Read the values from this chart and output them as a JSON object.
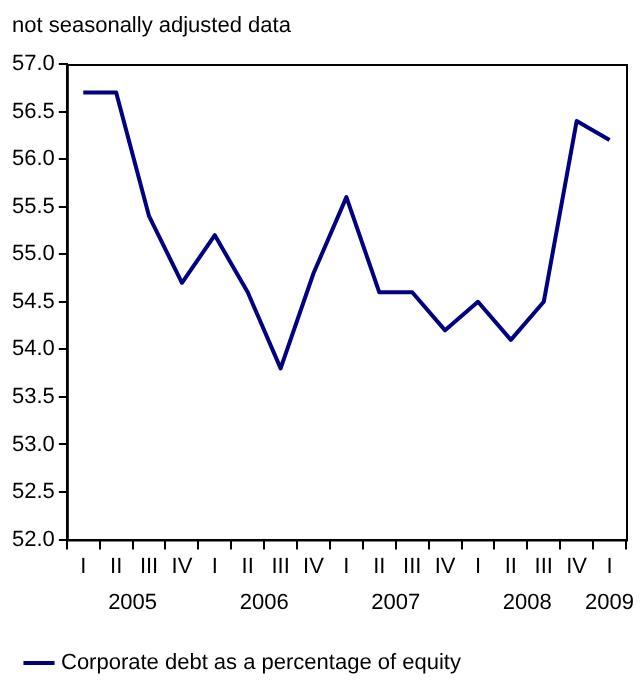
{
  "chart_data": {
    "type": "line",
    "ylabel": "not seasonally adjusted data",
    "categories": [
      "I",
      "II",
      "III",
      "IV",
      "I",
      "II",
      "III",
      "IV",
      "I",
      "II",
      "III",
      "IV",
      "I",
      "II",
      "III",
      "IV",
      "I"
    ],
    "series": [
      {
        "name": "Corporate debt as a percentage of equity",
        "color": "#000080",
        "values": [
          56.7,
          56.7,
          55.4,
          54.7,
          55.2,
          54.6,
          53.8,
          54.8,
          55.6,
          54.6,
          54.6,
          54.2,
          54.5,
          54.1,
          54.5,
          56.4,
          56.2
        ]
      }
    ],
    "annotations": [
      "2005",
      "2006",
      "2007",
      "2008",
      "2009"
    ],
    "ylim": [
      52,
      57
    ],
    "yticks": [
      {
        "value": 52,
        "label": "52.0"
      },
      {
        "value": 52.5,
        "label": "52.5"
      },
      {
        "value": 53,
        "label": "53.0"
      },
      {
        "value": 53.5,
        "label": "53.5"
      },
      {
        "value": 54,
        "label": "54.0"
      },
      {
        "value": 54.5,
        "label": "54.5"
      },
      {
        "value": 55,
        "label": "55.0"
      },
      {
        "value": 55.5,
        "label": "55.5"
      },
      {
        "value": 56,
        "label": "56.0"
      },
      {
        "value": 56.5,
        "label": "56.5"
      },
      {
        "value": 57,
        "label": "57.0"
      }
    ],
    "grid": false,
    "legend": "bottom left",
    "marker": "none",
    "line_style": "solid"
  }
}
